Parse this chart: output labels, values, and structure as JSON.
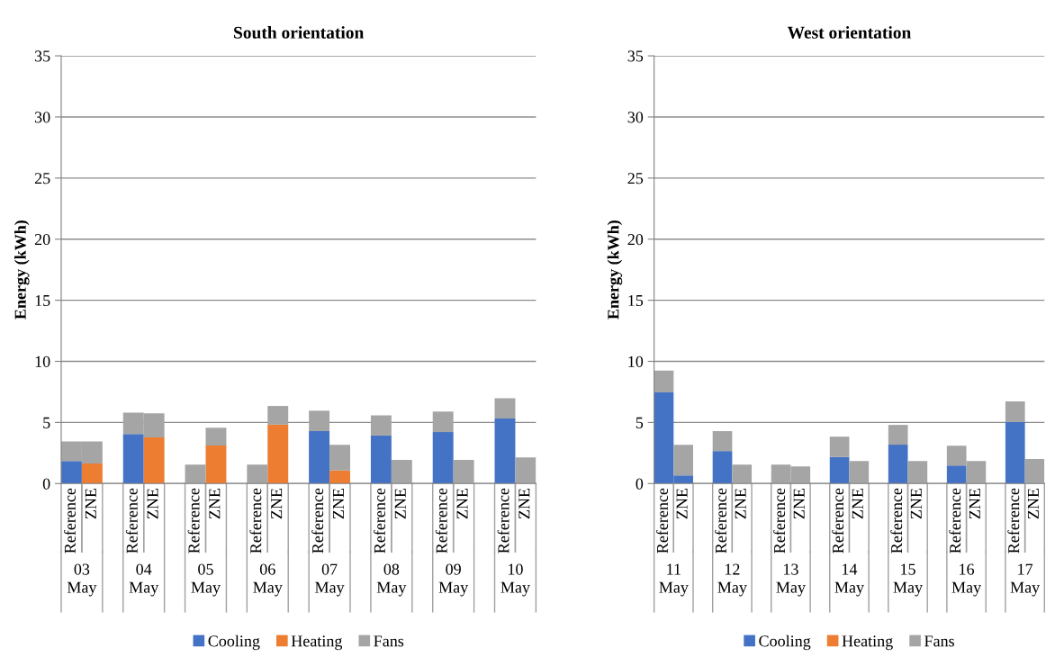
{
  "chart_data": [
    {
      "type": "bar",
      "title": "South orientation",
      "ylabel": "Energy (kWh)",
      "stacked": true,
      "categories": [
        "Reference",
        "ZNE",
        null,
        "Reference",
        "ZNE",
        null,
        "Reference",
        "ZNE",
        null,
        "Reference",
        "ZNE",
        null,
        "Reference",
        "ZNE",
        null,
        "Reference",
        "ZNE",
        null,
        "Reference",
        "ZNE",
        null,
        "Reference",
        "ZNE"
      ],
      "series": [
        {
          "name": "Cooling",
          "color": "#4472c4",
          "values": [
            1.85,
            null,
            null,
            4.06,
            null,
            null,
            null,
            null,
            null,
            null,
            null,
            null,
            4.29,
            null,
            null,
            3.93,
            null,
            null,
            4.21,
            null,
            null,
            5.33,
            null
          ]
        },
        {
          "name": "Heating",
          "color": "#ed7d31",
          "values": [
            null,
            1.65,
            null,
            null,
            3.78,
            null,
            null,
            3.12,
            null,
            null,
            4.82,
            null,
            null,
            1.07,
            null,
            null,
            null,
            null,
            null,
            null,
            null,
            null,
            null
          ]
        },
        {
          "name": "Fans",
          "color": "#a5a5a5",
          "values": [
            1.6,
            1.8,
            null,
            1.75,
            1.96,
            null,
            1.55,
            1.45,
            null,
            1.55,
            1.53,
            null,
            1.67,
            2.1,
            null,
            1.65,
            1.93,
            null,
            1.68,
            1.93,
            null,
            1.65,
            2.13
          ]
        }
      ],
      "annotations": [
        "03\nMay",
        "04\nMay",
        "05\nMay",
        "06\nMay",
        "07\nMay",
        "08\nMay",
        "09\nMay",
        "10\nMay"
      ],
      "ylim": [
        0,
        35
      ],
      "yticks": [
        0,
        5,
        10,
        15,
        20,
        25,
        30,
        35
      ],
      "grid": "y",
      "legend": "bottom"
    },
    {
      "type": "bar",
      "title": "West orientation",
      "ylabel": "Energy (kWh)",
      "stacked": true,
      "categories": [
        "Reference",
        "ZNE",
        null,
        "Reference",
        "ZNE",
        null,
        "Reference",
        "ZNE",
        null,
        "Reference",
        "ZNE",
        null,
        "Reference",
        "ZNE",
        null,
        "Reference",
        "ZNE",
        null,
        "Reference",
        "ZNE"
      ],
      "series": [
        {
          "name": "Cooling",
          "color": "#4472c4",
          "values": [
            7.46,
            0.67,
            null,
            2.66,
            null,
            null,
            null,
            null,
            null,
            2.17,
            null,
            null,
            3.18,
            null,
            null,
            1.48,
            null,
            null,
            5.02,
            null
          ]
        },
        {
          "name": "Heating",
          "color": "#ed7d31",
          "values": [
            null,
            null,
            null,
            null,
            null,
            null,
            null,
            null,
            null,
            null,
            null,
            null,
            null,
            null,
            null,
            null,
            null,
            null,
            null,
            null
          ]
        },
        {
          "name": "Fans",
          "color": "#a5a5a5",
          "values": [
            1.78,
            2.5,
            null,
            1.63,
            1.55,
            null,
            1.55,
            1.4,
            null,
            1.67,
            1.85,
            null,
            1.62,
            1.85,
            null,
            1.62,
            1.85,
            null,
            1.7,
            2.0
          ]
        }
      ],
      "annotations": [
        "11\nMay",
        "12\nMay",
        "13\nMay",
        "14\nMay",
        "15\nMay",
        "16\nMay",
        "17\nMay"
      ],
      "ylim": [
        0,
        35
      ],
      "yticks": [
        0,
        5,
        10,
        15,
        20,
        25,
        30,
        35
      ],
      "grid": "y",
      "legend": "bottom"
    }
  ]
}
